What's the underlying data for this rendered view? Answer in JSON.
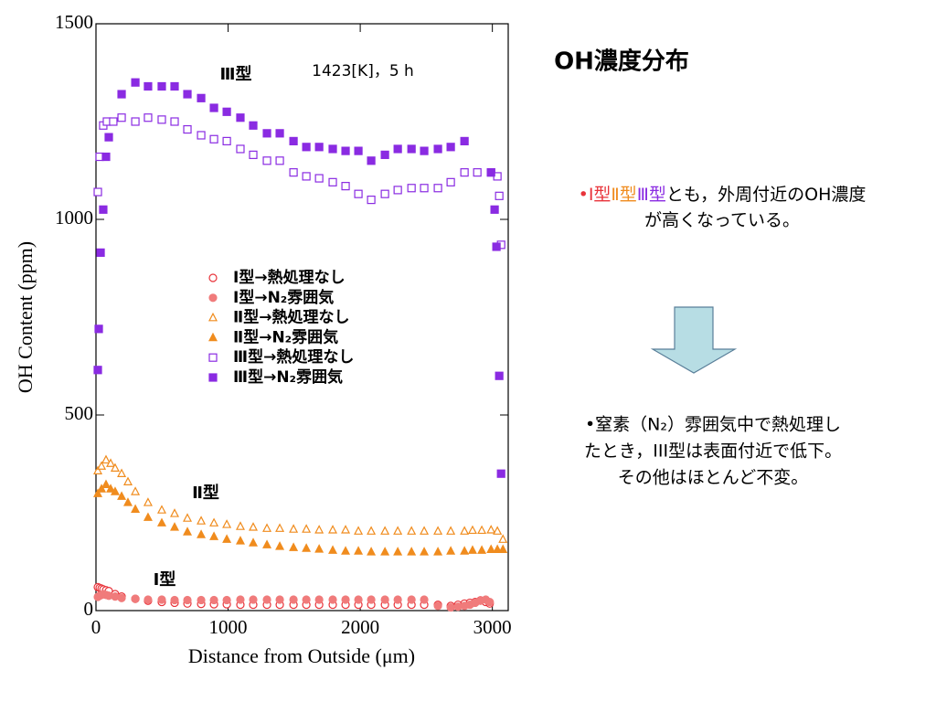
{
  "chart_data": {
    "type": "scatter",
    "xlabel": "Distance from Outside (μm)",
    "ylabel": "OH Content (ppm)",
    "xlim": [
      0,
      3120
    ],
    "ylim": [
      0,
      1500
    ],
    "xticks": [
      0,
      1000,
      2000,
      3000
    ],
    "yticks": [
      0,
      500,
      1000,
      1500
    ],
    "annotations": [
      "Ⅲ型",
      "1423[K]，5 h",
      "Ⅱ型",
      "Ⅰ型"
    ],
    "series": [
      {
        "name": "Ⅰ型→熱処理なし",
        "color": "#e8333a",
        "marker": "circle",
        "filled": false,
        "x": [
          14,
          28,
          42,
          56,
          76,
          97,
          145,
          194,
          298,
          394,
          498,
          595,
          692,
          796,
          893,
          990,
          1093,
          1190,
          1294,
          1391,
          1495,
          1592,
          1689,
          1792,
          1889,
          1986,
          2083,
          2187,
          2284,
          2388,
          2484,
          2588,
          2685,
          2740,
          2789,
          2830,
          2870,
          2910,
          2950,
          2980
        ],
        "values": [
          60,
          58,
          56,
          54,
          52,
          50,
          42,
          36,
          30,
          25,
          22,
          20,
          18,
          17,
          16,
          16,
          15,
          15,
          15,
          15,
          15,
          15,
          15,
          15,
          15,
          15,
          15,
          15,
          15,
          15,
          15,
          15,
          12,
          15,
          18,
          20,
          22,
          26,
          22,
          18
        ]
      },
      {
        "name": "Ⅰ型→N₂雰囲気",
        "color": "#f07b7b",
        "marker": "circle",
        "filled": true,
        "x": [
          14,
          28,
          42,
          56,
          76,
          97,
          145,
          194,
          298,
          394,
          498,
          595,
          692,
          796,
          893,
          990,
          1093,
          1190,
          1294,
          1391,
          1495,
          1592,
          1689,
          1792,
          1889,
          1986,
          2083,
          2187,
          2284,
          2388,
          2484,
          2588,
          2685,
          2740,
          2789,
          2830,
          2870,
          2910,
          2950,
          2980
        ],
        "values": [
          35,
          38,
          40,
          42,
          40,
          38,
          36,
          32,
          30,
          28,
          28,
          27,
          27,
          27,
          27,
          27,
          28,
          28,
          28,
          28,
          28,
          28,
          28,
          28,
          28,
          28,
          28,
          28,
          28,
          28,
          28,
          12,
          8,
          10,
          12,
          15,
          20,
          25,
          28,
          22
        ]
      },
      {
        "name": "Ⅱ型→熱処理なし",
        "color": "#f08c1e",
        "marker": "triangle",
        "filled": false,
        "x": [
          14,
          42,
          76,
          111,
          145,
          194,
          242,
          298,
          394,
          498,
          595,
          692,
          796,
          893,
          990,
          1093,
          1190,
          1294,
          1391,
          1495,
          1592,
          1689,
          1792,
          1889,
          1986,
          2083,
          2187,
          2284,
          2388,
          2484,
          2588,
          2685,
          2789,
          2850,
          2920,
          2990,
          3038,
          3080
        ],
        "values": [
          357,
          369,
          385,
          376,
          364,
          350,
          329,
          304,
          276,
          257,
          248,
          236,
          229,
          224,
          220,
          215,
          213,
          210,
          210,
          208,
          208,
          206,
          206,
          206,
          203,
          203,
          203,
          203,
          203,
          203,
          203,
          203,
          203,
          205,
          205,
          206,
          203,
          182
        ]
      },
      {
        "name": "Ⅱ型→N₂雰囲気",
        "color": "#f08c1e",
        "marker": "triangle",
        "filled": true,
        "x": [
          14,
          42,
          76,
          111,
          145,
          194,
          242,
          298,
          394,
          498,
          595,
          692,
          796,
          893,
          990,
          1093,
          1190,
          1294,
          1391,
          1495,
          1592,
          1689,
          1792,
          1889,
          1986,
          2083,
          2187,
          2284,
          2388,
          2484,
          2588,
          2685,
          2789,
          2850,
          2920,
          2990,
          3038,
          3080
        ],
        "values": [
          299,
          311,
          322,
          311,
          304,
          292,
          276,
          259,
          238,
          224,
          213,
          201,
          194,
          189,
          182,
          178,
          173,
          168,
          164,
          161,
          159,
          157,
          154,
          152,
          152,
          150,
          150,
          150,
          150,
          150,
          150,
          152,
          152,
          154,
          154,
          156,
          156,
          156
        ]
      },
      {
        "name": "Ⅲ型→熱処理なし",
        "color": "#8a2be2",
        "marker": "square",
        "filled": false,
        "x": [
          14,
          28,
          55,
          83,
          131,
          194,
          298,
          394,
          498,
          595,
          692,
          796,
          893,
          990,
          1093,
          1190,
          1294,
          1391,
          1495,
          1592,
          1689,
          1792,
          1889,
          1986,
          2083,
          2187,
          2284,
          2388,
          2484,
          2588,
          2685,
          2789,
          2886,
          2990,
          3038,
          3052,
          3066
        ],
        "values": [
          1070,
          1160,
          1240,
          1250,
          1250,
          1260,
          1250,
          1260,
          1255,
          1250,
          1230,
          1215,
          1205,
          1200,
          1180,
          1165,
          1150,
          1150,
          1120,
          1110,
          1105,
          1095,
          1085,
          1065,
          1050,
          1065,
          1075,
          1080,
          1080,
          1080,
          1095,
          1120,
          1120,
          1120,
          1110,
          1060,
          935
        ]
      },
      {
        "name": "Ⅲ型→N₂雰囲気",
        "color": "#8a2be2",
        "marker": "square",
        "filled": true,
        "x": [
          14,
          21,
          35,
          55,
          76,
          97,
          194,
          298,
          394,
          498,
          595,
          692,
          796,
          893,
          990,
          1093,
          1190,
          1294,
          1391,
          1495,
          1592,
          1689,
          1792,
          1889,
          1986,
          2083,
          2187,
          2284,
          2388,
          2484,
          2588,
          2685,
          2789,
          2990,
          3017,
          3031,
          3052,
          3066
        ],
        "values": [
          615,
          720,
          915,
          1025,
          1160,
          1210,
          1320,
          1350,
          1340,
          1340,
          1340,
          1320,
          1310,
          1285,
          1275,
          1260,
          1240,
          1220,
          1220,
          1200,
          1185,
          1185,
          1180,
          1175,
          1175,
          1150,
          1165,
          1180,
          1180,
          1175,
          1180,
          1185,
          1200,
          1120,
          1025,
          930,
          600,
          350
        ]
      }
    ]
  },
  "slide": {
    "title": "OH濃度分布",
    "note1": {
      "lines": [
        [
          {
            "text": "•Ⅰ型",
            "color": "#e8333a"
          },
          {
            "text": "Ⅱ型",
            "color": "#f08c1e"
          },
          {
            "text": "Ⅲ型",
            "color": "#8a2be2"
          },
          {
            "text": "とも，外周付近のOH濃度",
            "color": "#000000"
          }
        ],
        [
          {
            "text": "が高くなっている。",
            "color": "#000000"
          }
        ]
      ]
    },
    "note2": {
      "lines": [
        "•窒素（N₂）雰囲気中で熱処理し",
        "たとき，III型は表面付近で低下。",
        "その他はほとんど不変。"
      ]
    }
  }
}
